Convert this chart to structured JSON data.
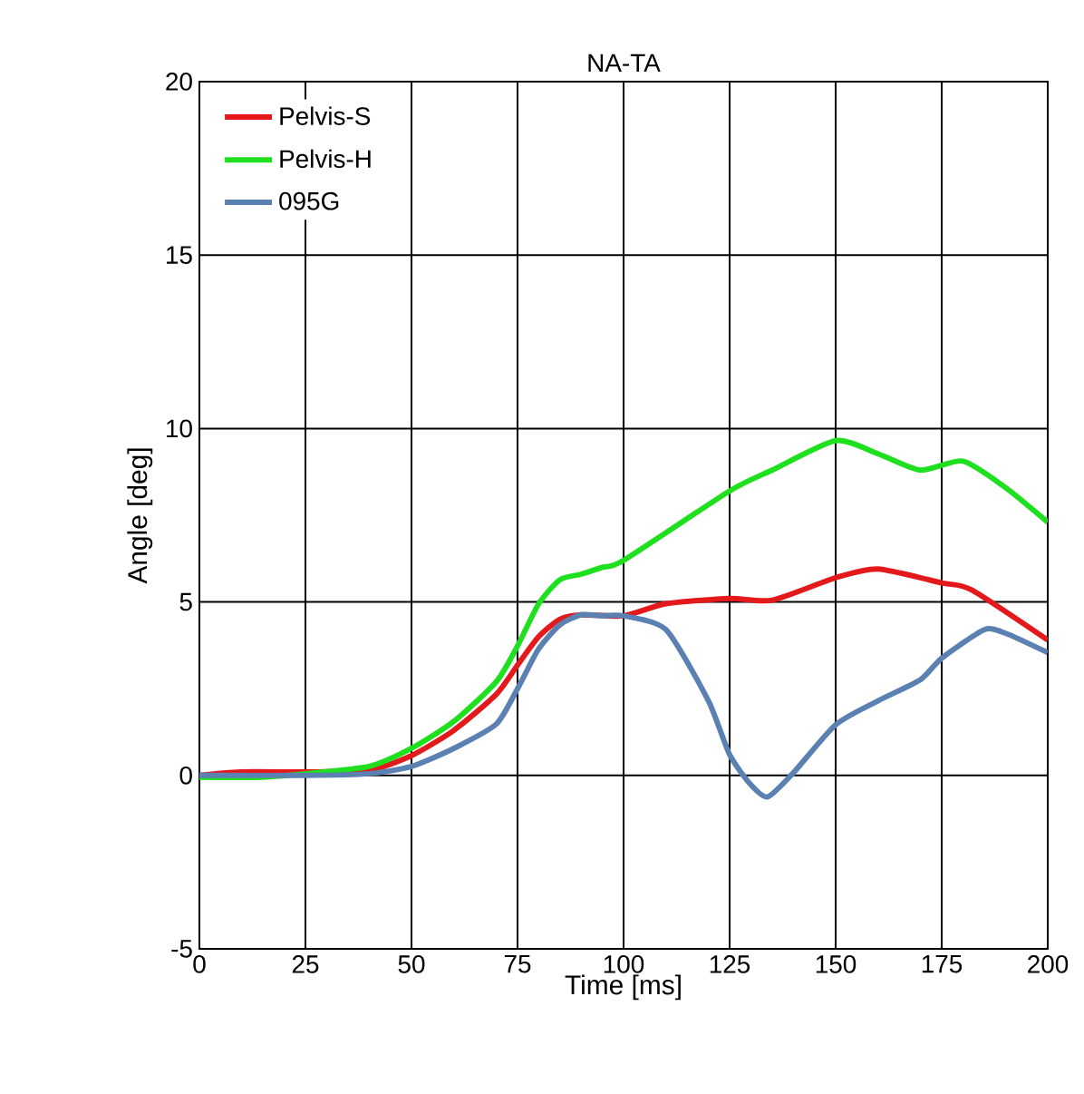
{
  "chart_data": {
    "type": "line",
    "title": "NA-TA",
    "xlabel": "Time [ms]",
    "ylabel": "Angle [deg]",
    "xlim": [
      0,
      200
    ],
    "ylim": [
      -5,
      20
    ],
    "xticks": [
      0,
      25,
      50,
      75,
      100,
      125,
      150,
      175,
      200
    ],
    "yticks": [
      -5,
      0,
      5,
      10,
      15,
      20
    ],
    "grid": true,
    "legend": "top left",
    "line_style": "solid",
    "series": [
      {
        "name": "Pelvis-S",
        "color": "#e3191c",
        "x": [
          0,
          10,
          25,
          40,
          50,
          60,
          70,
          75,
          80,
          85,
          90,
          100,
          110,
          125,
          135,
          150,
          160,
          175,
          182,
          200
        ],
        "values": [
          0,
          0.1,
          0.1,
          0.15,
          0.57,
          1.3,
          2.34,
          3.18,
          4.0,
          4.5,
          4.63,
          4.6,
          4.95,
          5.1,
          5.05,
          5.7,
          5.95,
          5.55,
          5.35,
          3.9
        ]
      },
      {
        "name": "Pelvis-H",
        "color": "#1ee01e",
        "x": [
          0,
          15,
          25,
          40,
          50,
          60,
          70,
          75,
          80,
          85,
          90,
          95,
          100,
          125,
          135,
          150,
          160,
          170,
          180,
          190,
          200
        ],
        "values": [
          -0.05,
          -0.05,
          0.05,
          0.26,
          0.78,
          1.56,
          2.7,
          3.73,
          4.95,
          5.64,
          5.8,
          6.0,
          6.2,
          8.2,
          8.8,
          9.65,
          9.27,
          8.8,
          9.06,
          8.3,
          7.3
        ]
      },
      {
        "name": "095G",
        "color": "#5b80b2",
        "x": [
          0,
          25,
          40,
          50,
          60,
          70,
          75,
          80,
          85,
          90,
          95,
          100,
          110,
          120,
          125,
          130,
          134,
          140,
          150,
          160,
          170,
          175,
          185,
          190,
          200
        ],
        "values": [
          0,
          0,
          0.05,
          0.26,
          0.78,
          1.48,
          2.5,
          3.65,
          4.34,
          4.63,
          4.6,
          4.6,
          4.2,
          2.15,
          0.6,
          -0.27,
          -0.62,
          0.07,
          1.46,
          2.15,
          2.76,
          3.38,
          4.2,
          4.1,
          3.54
        ]
      }
    ]
  }
}
